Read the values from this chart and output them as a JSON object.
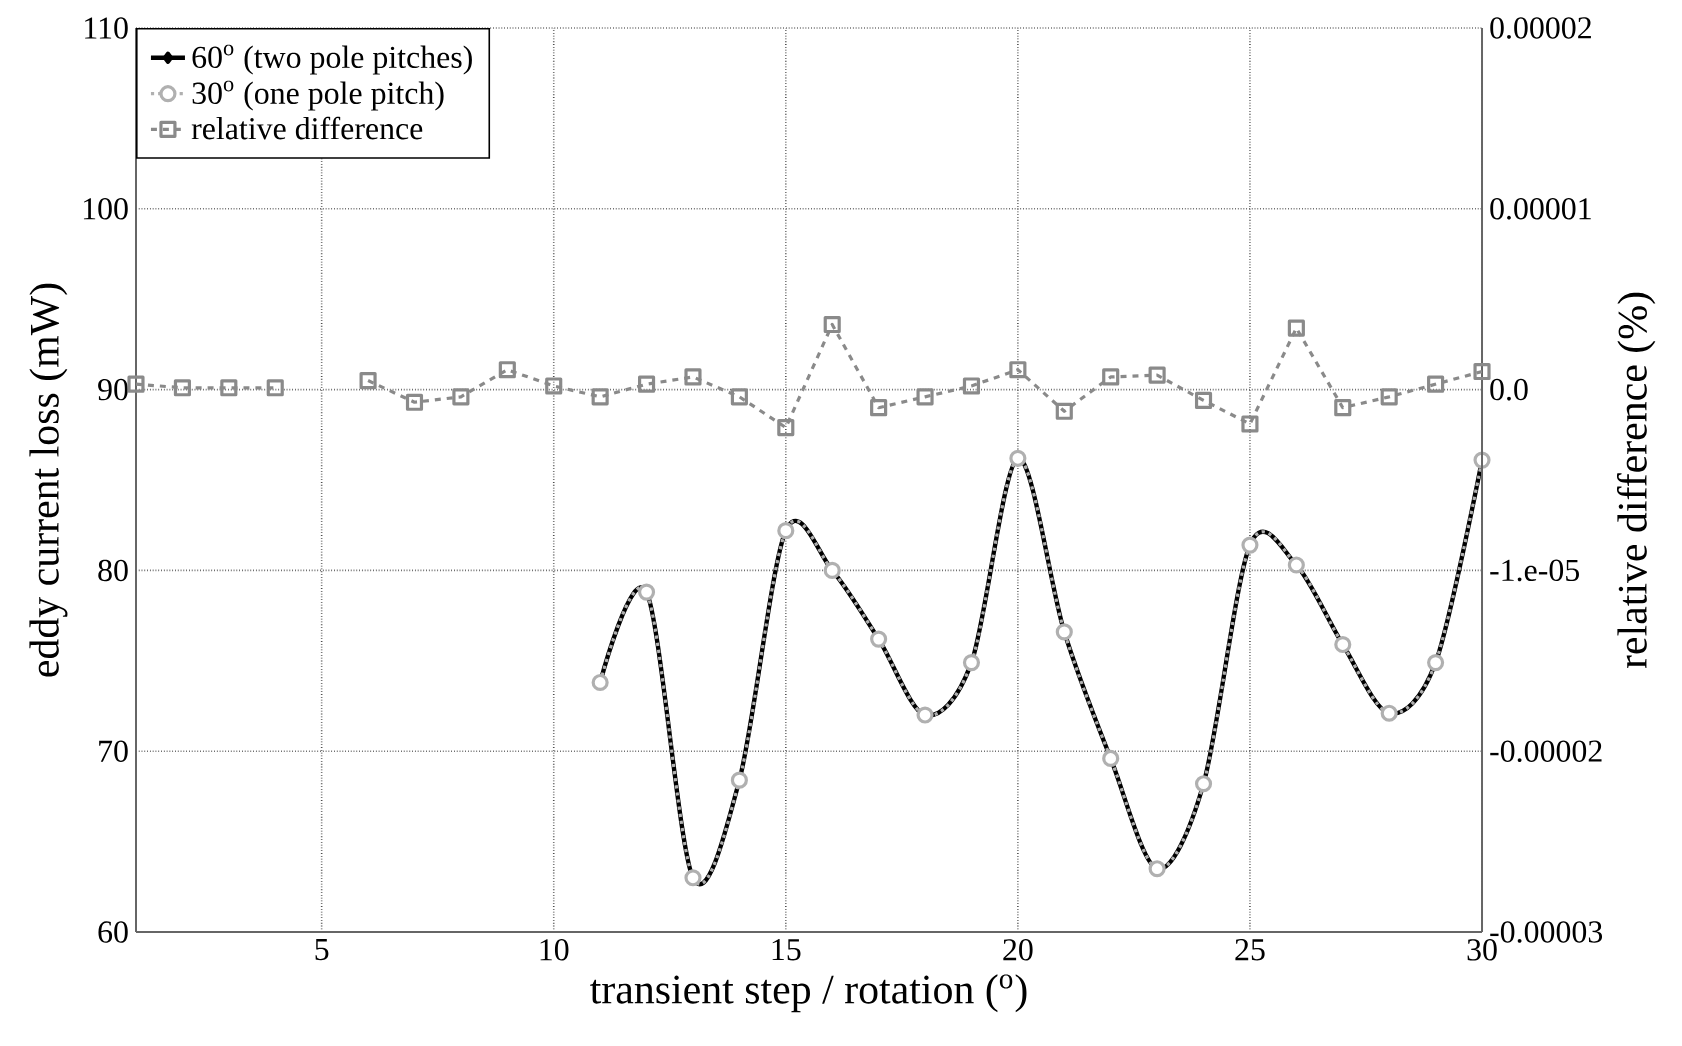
{
  "chart_data": {
    "type": "line",
    "xlabel": "transient step / rotation ($^{o}$)",
    "ylabel": "eddy current loss (mW)",
    "y2label": "relative difference (%)",
    "x": [
      1,
      2,
      3,
      4,
      5,
      6,
      7,
      8,
      9,
      10,
      11,
      12,
      13,
      14,
      15,
      16,
      17,
      18,
      19,
      20,
      21,
      22,
      23,
      24,
      25,
      26,
      27,
      28,
      29,
      30
    ],
    "xlim": [
      1,
      30
    ],
    "xticks": [
      5,
      10,
      15,
      20,
      25,
      30
    ],
    "ylim": [
      60,
      110
    ],
    "yticks": [
      60,
      70,
      80,
      90,
      100,
      110
    ],
    "y2lim": [
      -3e-05,
      2e-05
    ],
    "y2ticks": [
      {
        "value": -3e-05,
        "label": "-0.00003"
      },
      {
        "value": -2e-05,
        "label": "-0.00002"
      },
      {
        "value": -1e-05,
        "label": "-1.e-05"
      },
      {
        "value": 0,
        "label": "0.0"
      },
      {
        "value": 1e-05,
        "label": "0.00001"
      },
      {
        "value": 2e-05,
        "label": "0.00002"
      }
    ],
    "grid": true,
    "legend": "top left",
    "series": [
      {
        "name": "60$^{o}$ (two pole pitches)",
        "color": "#000000",
        "marker": "diamond",
        "line_style": "solid",
        "x": [
          11,
          12,
          13,
          14,
          15,
          16,
          17,
          18,
          19,
          20,
          21,
          22,
          23,
          24,
          25,
          26,
          27,
          28,
          29,
          30
        ],
        "values": [
          73.8,
          78.8,
          63.0,
          68.4,
          82.2,
          80.0,
          76.2,
          72.0,
          74.9,
          86.2,
          76.6,
          69.6,
          63.5,
          68.2,
          81.4,
          80.3,
          75.9,
          72.1,
          74.9,
          86.1
        ]
      },
      {
        "name": "30$^{o}$ (one pole pitch)",
        "color": "#b0b0b0",
        "marker": "circle",
        "line_style": "dotted",
        "x": [
          11,
          12,
          13,
          14,
          15,
          16,
          17,
          18,
          19,
          20,
          21,
          22,
          23,
          24,
          25,
          26,
          27,
          28,
          29,
          30
        ],
        "values": [
          73.8,
          78.8,
          63.0,
          68.4,
          82.2,
          80.0,
          76.2,
          72.0,
          74.9,
          86.2,
          76.6,
          69.6,
          63.5,
          68.2,
          81.4,
          80.3,
          75.9,
          72.1,
          74.9,
          86.1
        ]
      },
      {
        "name": "relative difference",
        "color": "#8a8a8a",
        "marker": "square",
        "line_style": "dashed",
        "axis": "y2",
        "values": [
          3e-07,
          1e-07,
          1e-07,
          1e-07,
          null,
          5e-07,
          -7e-07,
          -4e-07,
          1.1e-06,
          2e-07,
          -4e-07,
          3e-07,
          7e-07,
          -4e-07,
          -2.1e-06,
          3.6e-06,
          -1e-06,
          -4e-07,
          2e-07,
          1.1e-06,
          -1.2e-06,
          7e-07,
          8e-07,
          -6e-07,
          -1.9e-06,
          3.4e-06,
          -1e-06,
          -4e-07,
          3e-07,
          1e-06
        ]
      }
    ]
  }
}
